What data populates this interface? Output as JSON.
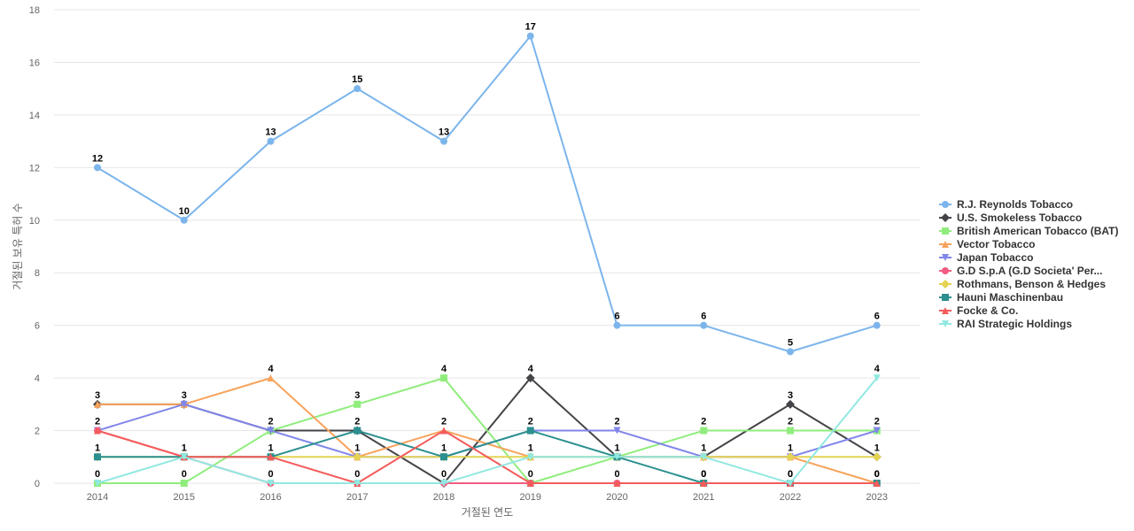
{
  "chart_data": {
    "type": "line",
    "title": "",
    "xlabel": "거절된 연도",
    "ylabel": "거절된 보유 특허 수",
    "x": [
      "2014",
      "2015",
      "2016",
      "2017",
      "2018",
      "2019",
      "2020",
      "2021",
      "2022",
      "2023"
    ],
    "ylim": [
      0,
      18
    ],
    "yticks": [
      0,
      2,
      4,
      6,
      8,
      10,
      12,
      14,
      16,
      18
    ],
    "grid": true,
    "legend_position": "right",
    "data_labels_series": [
      "R.J. Reynolds Tobacco",
      "Hauni Maschinenbau"
    ],
    "bottom_labels": [
      "0",
      "0",
      "0",
      "0",
      "0",
      "0",
      "0",
      "0",
      "0",
      "0"
    ],
    "series": [
      {
        "name": "R.J. Reynolds Tobacco",
        "values": [
          12,
          10,
          13,
          15,
          13,
          17,
          6,
          6,
          5,
          6
        ],
        "color": "#7cb5ec",
        "marker": "circle"
      },
      {
        "name": "U.S. Smokeless Tobacco",
        "values": [
          3,
          3,
          2,
          2,
          0,
          4,
          1,
          1,
          3,
          1
        ],
        "color": "#434348",
        "marker": "diamond"
      },
      {
        "name": "British American Tobacco (BAT)",
        "values": [
          0,
          0,
          2,
          3,
          4,
          0,
          1,
          2,
          2,
          2
        ],
        "color": "#90ed7d",
        "marker": "square"
      },
      {
        "name": "Vector Tobacco",
        "values": [
          3,
          3,
          4,
          1,
          2,
          1,
          1,
          1,
          1,
          0
        ],
        "color": "#f7a35c",
        "marker": "triangle"
      },
      {
        "name": "Japan Tobacco",
        "values": [
          2,
          3,
          2,
          1,
          1,
          2,
          2,
          1,
          1,
          2
        ],
        "color": "#8085e9",
        "marker": "triangle-down"
      },
      {
        "name": "G.D S.p.A (G.D Societa' Per...",
        "values": [
          2,
          1,
          0,
          0,
          0,
          0,
          0,
          0,
          0,
          0
        ],
        "color": "#f15c80",
        "marker": "circle"
      },
      {
        "name": "Rothmans, Benson & Hedges",
        "values": [
          1,
          1,
          1,
          1,
          1,
          1,
          1,
          1,
          1,
          1
        ],
        "color": "#e4d354",
        "marker": "diamond"
      },
      {
        "name": "Hauni Maschinenbau",
        "values": [
          1,
          1,
          1,
          2,
          1,
          2,
          1,
          0,
          0,
          0
        ],
        "color": "#2b908f",
        "marker": "square"
      },
      {
        "name": "Focke & Co.",
        "values": [
          2,
          1,
          1,
          0,
          2,
          0,
          0,
          0,
          0,
          0
        ],
        "color": "#f45b5b",
        "marker": "triangle"
      },
      {
        "name": "RAI Strategic Holdings",
        "values": [
          0,
          1,
          0,
          0,
          0,
          1,
          1,
          1,
          0,
          4
        ],
        "color": "#91e8e1",
        "marker": "triangle-down"
      }
    ],
    "top_labels": [
      {
        "x": "2014",
        "values": [
          "12",
          "3",
          "2",
          "1"
        ]
      },
      {
        "x": "2015",
        "values": [
          "10",
          "3",
          "1"
        ]
      },
      {
        "x": "2016",
        "values": [
          "13",
          "4",
          "2",
          "1"
        ]
      },
      {
        "x": "2017",
        "values": [
          "15",
          "3",
          "2",
          "1"
        ]
      },
      {
        "x": "2018",
        "values": [
          "13",
          "4",
          "2",
          "1"
        ]
      },
      {
        "x": "2019",
        "values": [
          "17",
          "4",
          "2",
          "1"
        ]
      },
      {
        "x": "2020",
        "values": [
          "6",
          "2",
          "1"
        ]
      },
      {
        "x": "2021",
        "values": [
          "6",
          "2",
          "1"
        ]
      },
      {
        "x": "2022",
        "values": [
          "5",
          "3",
          "2",
          "1"
        ]
      },
      {
        "x": "2023",
        "values": [
          "6",
          "4",
          "2",
          "1"
        ]
      }
    ]
  }
}
